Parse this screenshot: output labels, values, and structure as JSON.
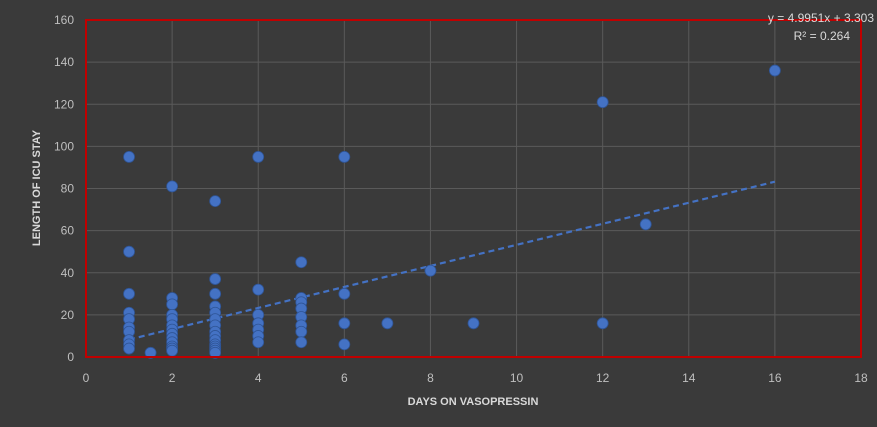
{
  "chart_data": {
    "type": "scatter",
    "title": "",
    "xlabel": "DAYS ON VASOPRESSIN",
    "ylabel": "LENGTH OF ICU STAY",
    "xlim": [
      0,
      18
    ],
    "ylim": [
      0,
      160
    ],
    "x_ticks": [
      0,
      2,
      4,
      6,
      8,
      10,
      12,
      14,
      16,
      18
    ],
    "y_ticks": [
      0,
      20,
      40,
      60,
      80,
      100,
      120,
      140,
      160
    ],
    "grid": true,
    "legend": "none",
    "colors": {
      "background": "#3a3a3a",
      "plot_border": "#c00000",
      "point": "#4472c4",
      "trendline": "#4472c4"
    },
    "points": [
      [
        1,
        95
      ],
      [
        1,
        50
      ],
      [
        1,
        30
      ],
      [
        1,
        21
      ],
      [
        1,
        18
      ],
      [
        1,
        14
      ],
      [
        1,
        12
      ],
      [
        1,
        8
      ],
      [
        1,
        6
      ],
      [
        1,
        4
      ],
      [
        1.5,
        2
      ],
      [
        2,
        81
      ],
      [
        2,
        28
      ],
      [
        2,
        25
      ],
      [
        2,
        20
      ],
      [
        2,
        18
      ],
      [
        2,
        15
      ],
      [
        2,
        13
      ],
      [
        2,
        11
      ],
      [
        2,
        9
      ],
      [
        2,
        7
      ],
      [
        2,
        5
      ],
      [
        2,
        4
      ],
      [
        2,
        3
      ],
      [
        3,
        74
      ],
      [
        3,
        37
      ],
      [
        3,
        30
      ],
      [
        3,
        24
      ],
      [
        3,
        21
      ],
      [
        3,
        18
      ],
      [
        3,
        15
      ],
      [
        3,
        12
      ],
      [
        3,
        10
      ],
      [
        3,
        8
      ],
      [
        3,
        6
      ],
      [
        3,
        5
      ],
      [
        3,
        4
      ],
      [
        3,
        3
      ],
      [
        3,
        2
      ],
      [
        4,
        95
      ],
      [
        4,
        32
      ],
      [
        4,
        20
      ],
      [
        4,
        16
      ],
      [
        4,
        13
      ],
      [
        4,
        10
      ],
      [
        4,
        7
      ],
      [
        5,
        45
      ],
      [
        5,
        28
      ],
      [
        5,
        26
      ],
      [
        5,
        23
      ],
      [
        5,
        19
      ],
      [
        5,
        15
      ],
      [
        5,
        12
      ],
      [
        5,
        7
      ],
      [
        6,
        95
      ],
      [
        6,
        30
      ],
      [
        6,
        16
      ],
      [
        6,
        6
      ],
      [
        7,
        16
      ],
      [
        8,
        41
      ],
      [
        9,
        16
      ],
      [
        12,
        121
      ],
      [
        12,
        16
      ],
      [
        13,
        63
      ],
      [
        16,
        136
      ]
    ],
    "trendline": {
      "slope": 4.9951,
      "intercept": 3.303,
      "x_range": [
        1,
        16
      ],
      "equation_label": "y = 4.9951x + 3.303",
      "r2_label": "R² = 0.264"
    }
  }
}
